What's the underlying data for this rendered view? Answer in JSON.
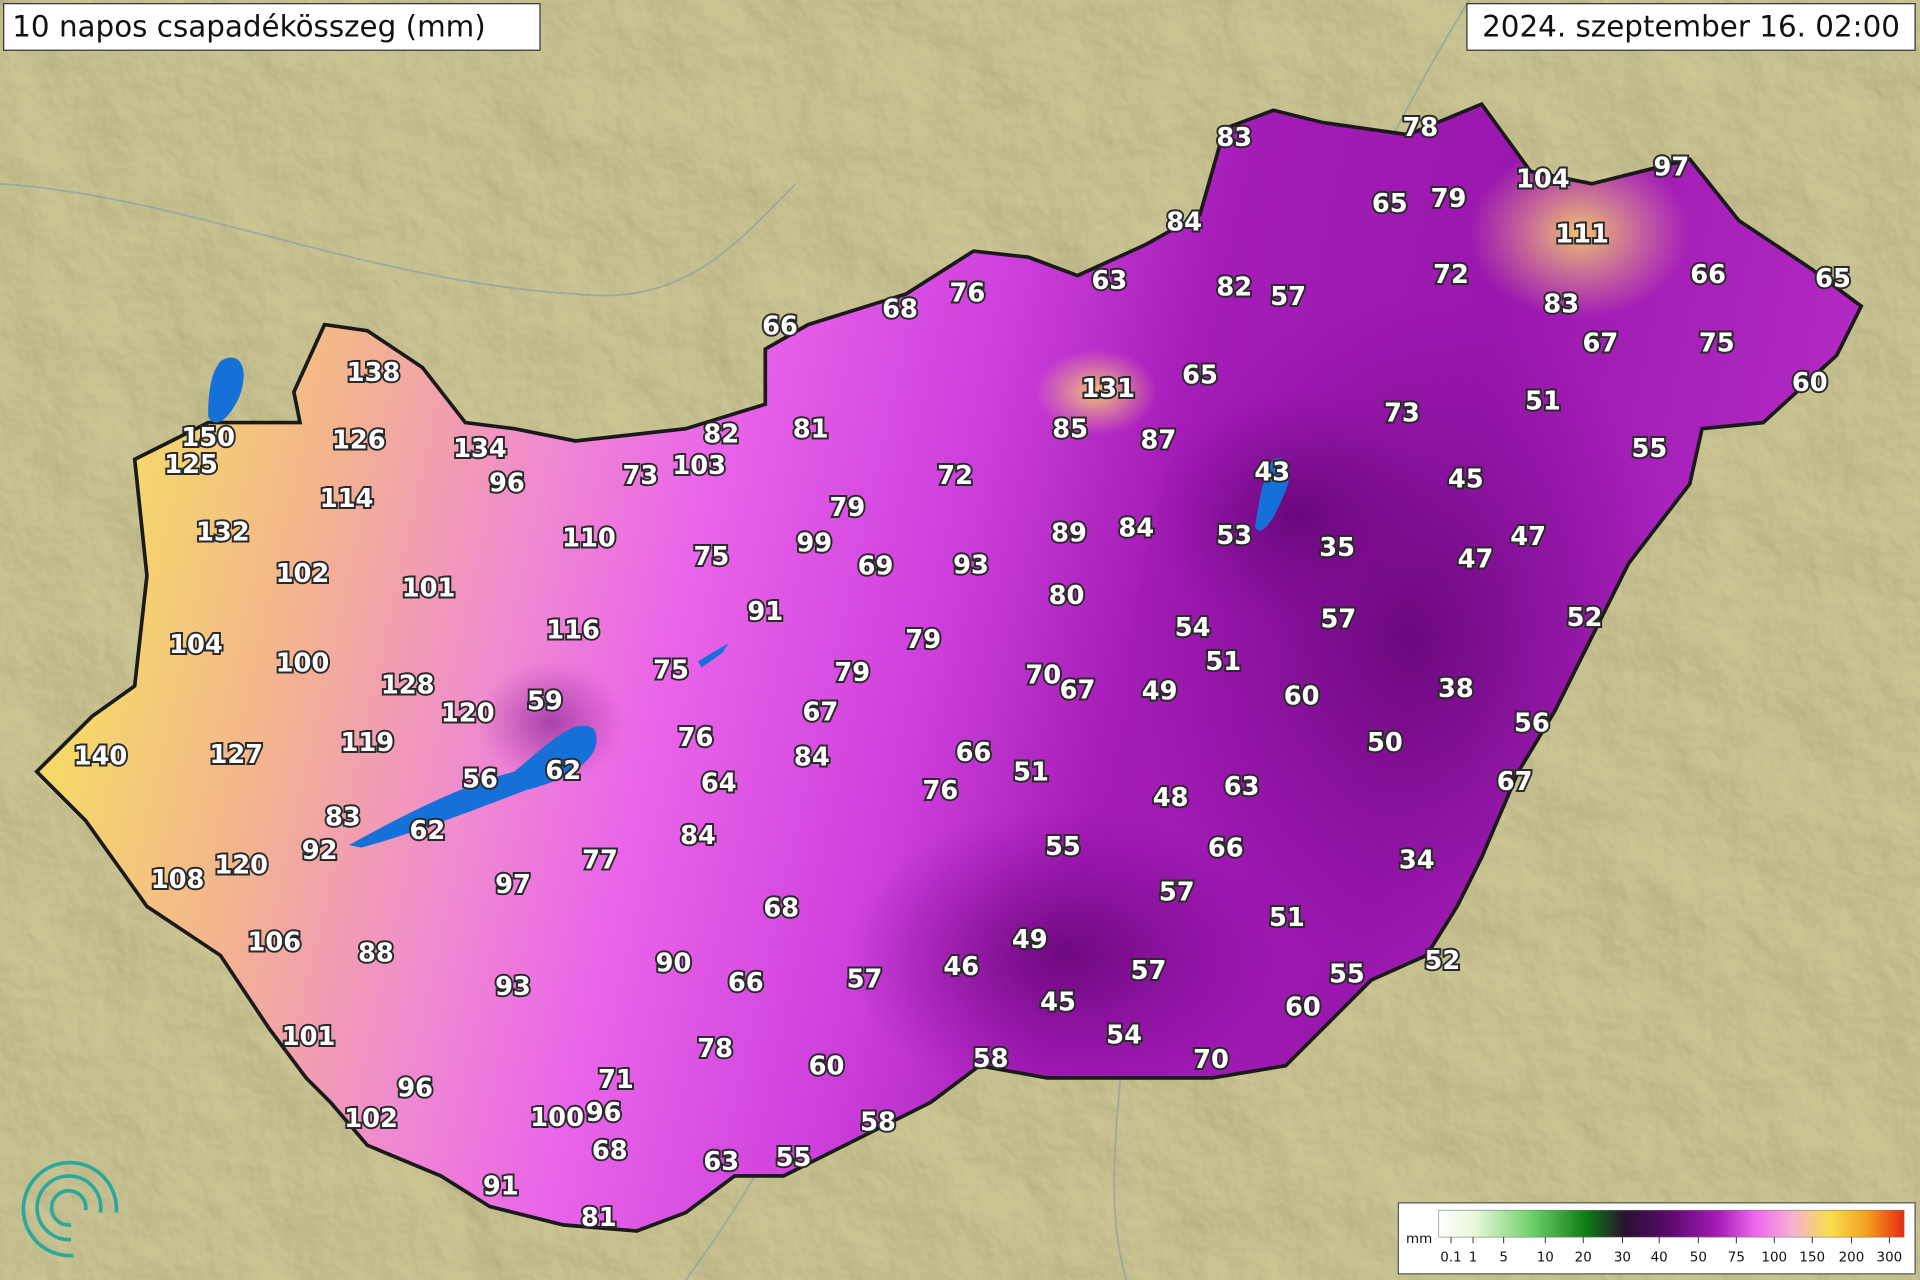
{
  "title": "10 napos csapadékösszeg (mm)",
  "timestamp": "2024. szeptember 16. 02:00",
  "stations": [
    83,
    78,
    104,
    97,
    65,
    79,
    84,
    111,
    66,
    65,
    72,
    63,
    82,
    57,
    76,
    68,
    66,
    83,
    67,
    75,
    60,
    138,
    131,
    65,
    51,
    73,
    150,
    126,
    134,
    82,
    81,
    85,
    87,
    55,
    125,
    96,
    73,
    103,
    72,
    43,
    45,
    114,
    79,
    132,
    110,
    99,
    89,
    84,
    53,
    35,
    47,
    47,
    75,
    69,
    93,
    102,
    101,
    80,
    91,
    116,
    54,
    57,
    52,
    104,
    79,
    100,
    51,
    75,
    79,
    70,
    67,
    49,
    60,
    38,
    128,
    59,
    120,
    67,
    76,
    56,
    50,
    119,
    140,
    127,
    62,
    84,
    66,
    51,
    56,
    64,
    76,
    48,
    63,
    67,
    83,
    62,
    84,
    92,
    55,
    66,
    34,
    120,
    77,
    108,
    97,
    68,
    57,
    51,
    106,
    88,
    90,
    49,
    57,
    46,
    57,
    93,
    66,
    55,
    52,
    45,
    60,
    101,
    78,
    54,
    58,
    70,
    60,
    96,
    71,
    102,
    100,
    96,
    58,
    68,
    63,
    55,
    91,
    81
  ],
  "legend": {
    "unit": "mm",
    "ticks": [
      0.1,
      1,
      5,
      10,
      20,
      30,
      40,
      50,
      75,
      100,
      150,
      200,
      300
    ]
  }
}
